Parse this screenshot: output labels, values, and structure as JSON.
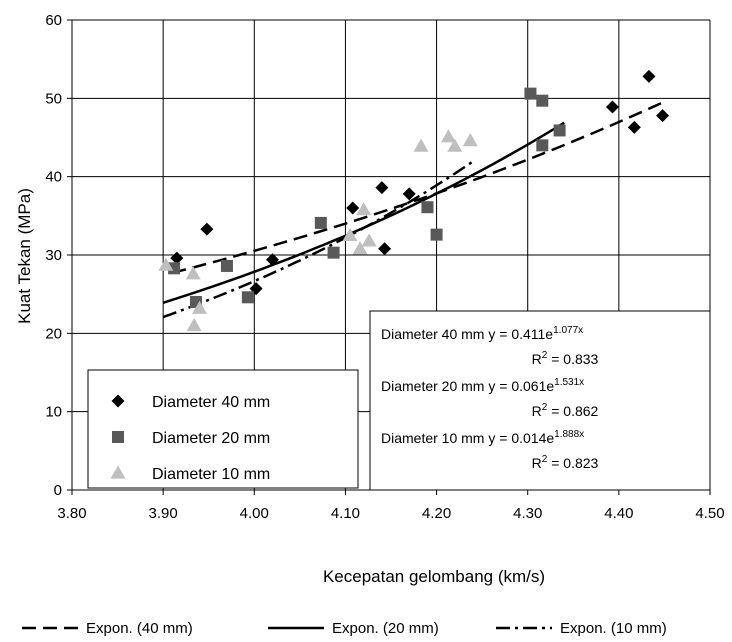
{
  "chart_data": {
    "type": "scatter",
    "title": "",
    "xlabel": "Kecepatan gelombang (km/s)",
    "ylabel": "Kuat Tekan (MPa)",
    "xlim": [
      3.8,
      4.5
    ],
    "ylim": [
      0,
      60
    ],
    "x_ticks": [
      "3.80",
      "3.90",
      "4.00",
      "4.10",
      "4.20",
      "4.30",
      "4.40",
      "4.50"
    ],
    "y_ticks": [
      "0",
      "10",
      "20",
      "30",
      "40",
      "50",
      "60"
    ],
    "grid": true,
    "legend_position": "bottom-left",
    "series": [
      {
        "name": "Diameter 40 mm",
        "marker": "diamond",
        "color": "#000000",
        "points": [
          {
            "x": 3.915,
            "y": 29.6
          },
          {
            "x": 3.948,
            "y": 33.3
          },
          {
            "x": 4.002,
            "y": 25.7
          },
          {
            "x": 4.02,
            "y": 29.4
          },
          {
            "x": 4.108,
            "y": 36.0
          },
          {
            "x": 4.14,
            "y": 38.6
          },
          {
            "x": 4.143,
            "y": 30.8
          },
          {
            "x": 4.17,
            "y": 37.8
          },
          {
            "x": 4.393,
            "y": 48.9
          },
          {
            "x": 4.417,
            "y": 46.3
          },
          {
            "x": 4.433,
            "y": 52.8
          },
          {
            "x": 4.448,
            "y": 47.8
          }
        ]
      },
      {
        "name": "Diameter 20 mm",
        "marker": "square",
        "color": "#595959",
        "points": [
          {
            "x": 3.912,
            "y": 28.3
          },
          {
            "x": 3.936,
            "y": 24.0
          },
          {
            "x": 3.97,
            "y": 28.6
          },
          {
            "x": 3.993,
            "y": 24.6
          },
          {
            "x": 4.073,
            "y": 34.1
          },
          {
            "x": 4.087,
            "y": 30.3
          },
          {
            "x": 4.19,
            "y": 36.1
          },
          {
            "x": 4.2,
            "y": 32.6
          },
          {
            "x": 4.303,
            "y": 50.6
          },
          {
            "x": 4.316,
            "y": 49.7
          },
          {
            "x": 4.316,
            "y": 44.0
          },
          {
            "x": 4.335,
            "y": 45.9
          }
        ]
      },
      {
        "name": "Diameter 10 mm",
        "marker": "triangle",
        "color": "#bfbfbf",
        "points": [
          {
            "x": 3.903,
            "y": 28.7
          },
          {
            "x": 3.933,
            "y": 27.6
          },
          {
            "x": 3.934,
            "y": 21.0
          },
          {
            "x": 3.94,
            "y": 23.2
          },
          {
            "x": 4.105,
            "y": 32.5
          },
          {
            "x": 4.116,
            "y": 30.8
          },
          {
            "x": 4.12,
            "y": 35.8
          },
          {
            "x": 4.126,
            "y": 31.8
          },
          {
            "x": 4.183,
            "y": 43.9
          },
          {
            "x": 4.213,
            "y": 45.1
          },
          {
            "x": 4.22,
            "y": 43.9
          },
          {
            "x": 4.237,
            "y": 44.6
          }
        ]
      }
    ],
    "trendlines": [
      {
        "name": "Expon. (40 mm)",
        "style": "dashed",
        "a": 0.411,
        "b": 1.077,
        "x_range": [
          3.91,
          4.45
        ]
      },
      {
        "name": "Expon. (20 mm)",
        "style": "solid",
        "a": 0.061,
        "b": 1.531,
        "x_range": [
          3.9,
          4.34
        ]
      },
      {
        "name": "Expon. (10 mm)",
        "style": "dash-dot",
        "a": 0.014,
        "b": 1.888,
        "x_range": [
          3.9,
          4.24
        ]
      }
    ],
    "equations": [
      {
        "label": "Diameter 40 mm",
        "eq_base": "y = 0.411e",
        "eq_exp": "1.077x",
        "r2_base": "R",
        "r2_sup": "2",
        "r2_value": " = 0.833"
      },
      {
        "label": "Diameter 20 mm",
        "eq_base": "y = 0.061e",
        "eq_exp": "1.531x",
        "r2_base": "R",
        "r2_sup": "2",
        "r2_value": " = 0.862"
      },
      {
        "label": "Diameter 10 mm",
        "eq_base": "y = 0.014e",
        "eq_exp": "1.888x",
        "r2_base": "R",
        "r2_sup": "2",
        "r2_value": " = 0.823"
      }
    ]
  }
}
